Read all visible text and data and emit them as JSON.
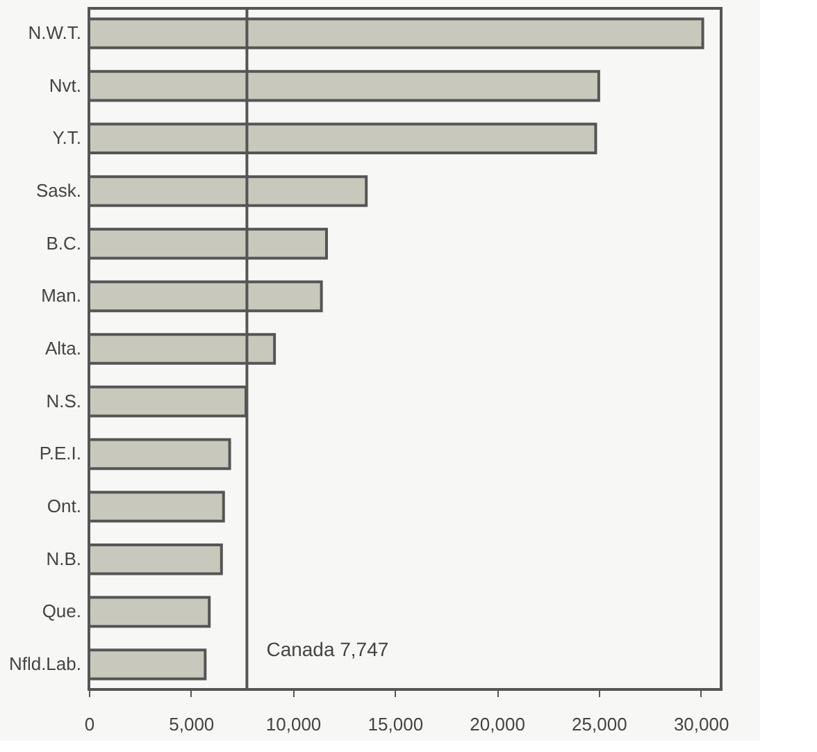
{
  "chart_data": {
    "type": "bar",
    "orientation": "horizontal",
    "categories": [
      "N.W.T.",
      "Nvt.",
      "Y.T.",
      "Sask.",
      "B.C.",
      "Man.",
      "Alta.",
      "N.S.",
      "P.E.I.",
      "Ont.",
      "N.B.",
      "Que.",
      "Nfld.Lab."
    ],
    "values": [
      30100,
      25000,
      24850,
      13600,
      11650,
      11400,
      9100,
      7700,
      6900,
      6600,
      6500,
      5900,
      5700
    ],
    "color": "#c8c8bc",
    "xlim": [
      0,
      31000
    ],
    "xticks": [
      {
        "value": 0,
        "label": "0"
      },
      {
        "value": 5000,
        "label": "5,000"
      },
      {
        "value": 10000,
        "label": "10,000"
      },
      {
        "value": 15000,
        "label": "15,000"
      },
      {
        "value": 20000,
        "label": "20,000"
      },
      {
        "value": 25000,
        "label": "25,000"
      },
      {
        "value": 30000,
        "label": "30,000"
      }
    ],
    "ref_lines": [
      {
        "axis": "x",
        "value": 7747,
        "label": "Canada 7,747",
        "color": "#555555"
      }
    ],
    "grid": false
  }
}
